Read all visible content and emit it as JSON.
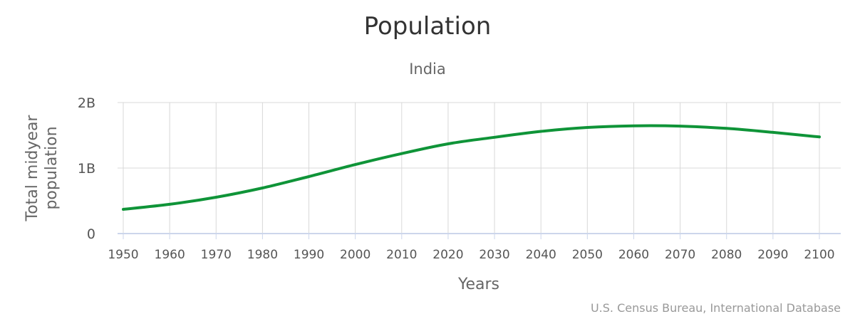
{
  "chart_data": {
    "type": "line",
    "title": "Population",
    "subtitle": "India",
    "xlabel": "Years",
    "ylabel_lines": [
      "Total midyear",
      "population"
    ],
    "credit": "U.S. Census Bureau, International Database",
    "xlim": [
      1950,
      2100
    ],
    "ylim": [
      0,
      2000000000
    ],
    "x_ticks": [
      1950,
      1960,
      1970,
      1980,
      1990,
      2000,
      2010,
      2020,
      2030,
      2040,
      2050,
      2060,
      2070,
      2080,
      2090,
      2100
    ],
    "y_ticks": [
      {
        "value": 0,
        "label": "0"
      },
      {
        "value": 1000000000,
        "label": "1B"
      },
      {
        "value": 2000000000,
        "label": "2B"
      }
    ],
    "grid": true,
    "legend": "none",
    "series": [
      {
        "color": "#0f9438",
        "x": [
          1950,
          1960,
          1970,
          1980,
          1990,
          2000,
          2010,
          2020,
          2030,
          2040,
          2050,
          2060,
          2070,
          2080,
          2090,
          2100
        ],
        "values": [
          370000000,
          447000000,
          554000000,
          696000000,
          870000000,
          1053000000,
          1221000000,
          1370000000,
          1470000000,
          1560000000,
          1620000000,
          1645000000,
          1640000000,
          1605000000,
          1545000000,
          1475000000
        ]
      }
    ]
  }
}
